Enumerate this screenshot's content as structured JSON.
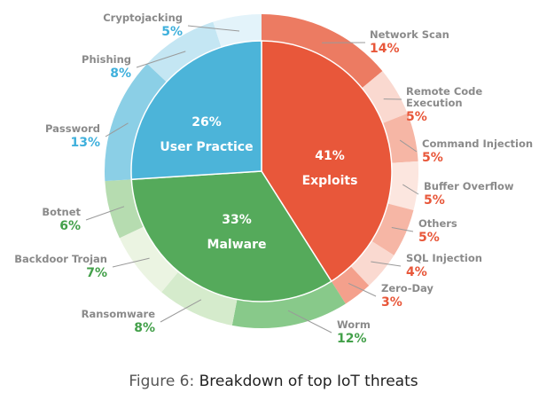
{
  "chart_data": {
    "type": "pie",
    "title": "Breakdown of top IoT threats",
    "main_categories": [
      {
        "name": "Exploits",
        "value": 41,
        "label": "41%",
        "color": "#e8573a"
      },
      {
        "name": "Malware",
        "value": 33,
        "label": "33%",
        "color": "#55aa5b"
      },
      {
        "name": "User Practice",
        "value": 26,
        "label": "26%",
        "color": "#4cb4d9"
      }
    ],
    "subcategories": [
      {
        "name": "Network Scan",
        "parent": "Exploits",
        "value": 14,
        "label": "14%",
        "color": "#ec7b62"
      },
      {
        "name": "Remote Code Execution",
        "name_lines": [
          "Remote Code",
          "Execution"
        ],
        "parent": "Exploits",
        "value": 5,
        "label": "5%",
        "color": "#fad9d0"
      },
      {
        "name": "Command Injection",
        "parent": "Exploits",
        "value": 5,
        "label": "5%",
        "color": "#f6b6a5"
      },
      {
        "name": "Buffer Overflow",
        "parent": "Exploits",
        "value": 5,
        "label": "5%",
        "color": "#fce6df"
      },
      {
        "name": "Others",
        "parent": "Exploits",
        "value": 5,
        "label": "5%",
        "color": "#f6b6a5"
      },
      {
        "name": "SQL Injection",
        "parent": "Exploits",
        "value": 4,
        "label": "4%",
        "color": "#fad9d0"
      },
      {
        "name": "Zero-Day",
        "parent": "Exploits",
        "value": 3,
        "label": "3%",
        "color": "#f4a08c"
      },
      {
        "name": "Worm",
        "parent": "Malware",
        "value": 12,
        "label": "12%",
        "color": "#88c98a"
      },
      {
        "name": "Ransomware",
        "parent": "Malware",
        "value": 8,
        "label": "8%",
        "color": "#d5ebcc"
      },
      {
        "name": "Backdoor Trojan",
        "parent": "Malware",
        "value": 7,
        "label": "7%",
        "color": "#ebf4e2"
      },
      {
        "name": "Botnet",
        "parent": "Malware",
        "value": 6,
        "label": "6%",
        "color": "#b6dcb0"
      },
      {
        "name": "Password",
        "parent": "User Practice",
        "value": 13,
        "label": "13%",
        "color": "#8bcfe6"
      },
      {
        "name": "Phishing",
        "parent": "User Practice",
        "value": 8,
        "label": "8%",
        "color": "#c4e6f3"
      },
      {
        "name": "Cryptojacking",
        "parent": "User Practice",
        "value": 5,
        "label": "5%",
        "color": "#e3f3fa"
      }
    ],
    "label_colors": {
      "Exploits": "#e8573a",
      "Malware": "#43a04a",
      "User Practice": "#3fb0dc",
      "name": "#8a8a8a"
    }
  },
  "caption": {
    "prefix": "Figure 6:",
    "text": "Breakdown of top IoT threats"
  }
}
